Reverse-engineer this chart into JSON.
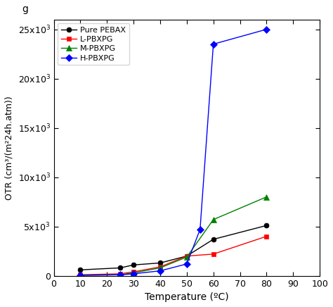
{
  "series": [
    {
      "label": "Pure PEBAX",
      "color": "#000000",
      "marker": "o",
      "markersize": 5,
      "x": [
        10,
        25,
        30,
        40,
        50,
        60,
        80
      ],
      "y": [
        600,
        800,
        1100,
        1300,
        2000,
        3700,
        5100
      ]
    },
    {
      "label": "L-PBXPG",
      "color": "#ff0000",
      "marker": "s",
      "markersize": 5,
      "x": [
        10,
        25,
        30,
        40,
        50,
        60,
        80
      ],
      "y": [
        100,
        200,
        400,
        900,
        2000,
        2200,
        4000
      ]
    },
    {
      "label": "M-PBXPG",
      "color": "#008000",
      "marker": "^",
      "markersize": 6,
      "x": [
        10,
        25,
        30,
        40,
        50,
        60,
        80
      ],
      "y": [
        50,
        100,
        300,
        800,
        1900,
        5700,
        8000
      ]
    },
    {
      "label": "H-PBXPG",
      "color": "#0000ff",
      "marker": "D",
      "markersize": 5,
      "x": [
        10,
        25,
        30,
        40,
        50,
        55,
        60,
        80
      ],
      "y": [
        50,
        100,
        200,
        500,
        1200,
        4700,
        23500,
        25000
      ]
    }
  ],
  "xlabel": "Temperature (ºC)",
  "ylabel": "OTR (cm³/(m²24h.atm))",
  "xlim": [
    0,
    100
  ],
  "ylim": [
    0,
    26000
  ],
  "ytick_values": [
    0,
    5000,
    10000,
    15000,
    20000,
    25000
  ],
  "ytick_labels": [
    "0",
    "5x10$^3$",
    "10x10$^3$",
    "15x10$^3$",
    "20x10$^3$",
    "25x10$^3$"
  ],
  "xtick_values": [
    0,
    10,
    20,
    30,
    40,
    50,
    60,
    70,
    80,
    90,
    100
  ],
  "xtick_labels": [
    "0",
    "10",
    "20",
    "30",
    "40",
    "50",
    "60",
    "70",
    "80",
    "90",
    "100"
  ],
  "background_color": "#ffffff",
  "figure_label": "g"
}
